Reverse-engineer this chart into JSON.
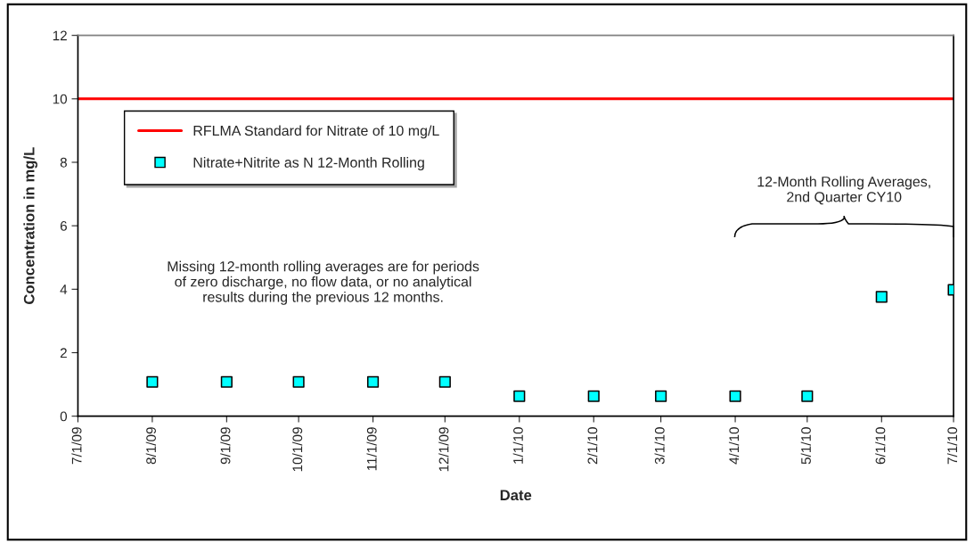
{
  "chart_data": {
    "type": "scatter",
    "xlabel": "Date",
    "ylabel": "Concentration in mg/L",
    "x": [
      "2009-08-01",
      "2009-09-01",
      "2009-10-01",
      "2009-11-01",
      "2009-12-01",
      "2010-01-01",
      "2010-02-01",
      "2010-03-01",
      "2010-04-01",
      "2010-05-01",
      "2010-06-01",
      "2010-07-01"
    ],
    "series": [
      {
        "name": "Nitrate+Nitrite as N 12-Month Rolling",
        "color": "#00ffff",
        "values": [
          1.08,
          1.08,
          1.08,
          1.08,
          1.08,
          0.63,
          0.63,
          0.63,
          0.63,
          0.63,
          3.76,
          3.98
        ]
      }
    ],
    "ref_lines": [
      {
        "axis": "y",
        "value": 10,
        "label": "RFLMA Standard for Nitrate of 10 mg/L",
        "color": "#ff0000",
        "line_style": "solid"
      }
    ],
    "annotations": [
      "Missing 12-month rolling averages are for periods\nof zero discharge, no flow data, or no analytical\nresults during the previous 12 months.",
      "12-Month Rolling Averages,\n2nd Quarter CY10"
    ],
    "xlim": [
      "2009-07-01",
      "2010-07-01"
    ],
    "xticks": [
      {
        "value": "2009-07-01",
        "label": "7/1/09"
      },
      {
        "value": "2009-08-01",
        "label": "8/1/09"
      },
      {
        "value": "2009-09-01",
        "label": "9/1/09"
      },
      {
        "value": "2009-10-01",
        "label": "10/1/09"
      },
      {
        "value": "2009-11-01",
        "label": "11/1/09"
      },
      {
        "value": "2009-12-01",
        "label": "12/1/09"
      },
      {
        "value": "2010-01-01",
        "label": "1/1/10"
      },
      {
        "value": "2010-02-01",
        "label": "2/1/10"
      },
      {
        "value": "2010-03-01",
        "label": "3/1/10"
      },
      {
        "value": "2010-04-01",
        "label": "4/1/10"
      },
      {
        "value": "2010-05-01",
        "label": "5/1/10"
      },
      {
        "value": "2010-06-01",
        "label": "6/1/10"
      },
      {
        "value": "2010-07-01",
        "label": "7/1/10"
      }
    ],
    "ylim": [
      0,
      12
    ],
    "yticks": [
      0,
      2,
      4,
      6,
      8,
      10,
      12
    ],
    "grid": false,
    "legend": "top left",
    "marker": "square"
  }
}
